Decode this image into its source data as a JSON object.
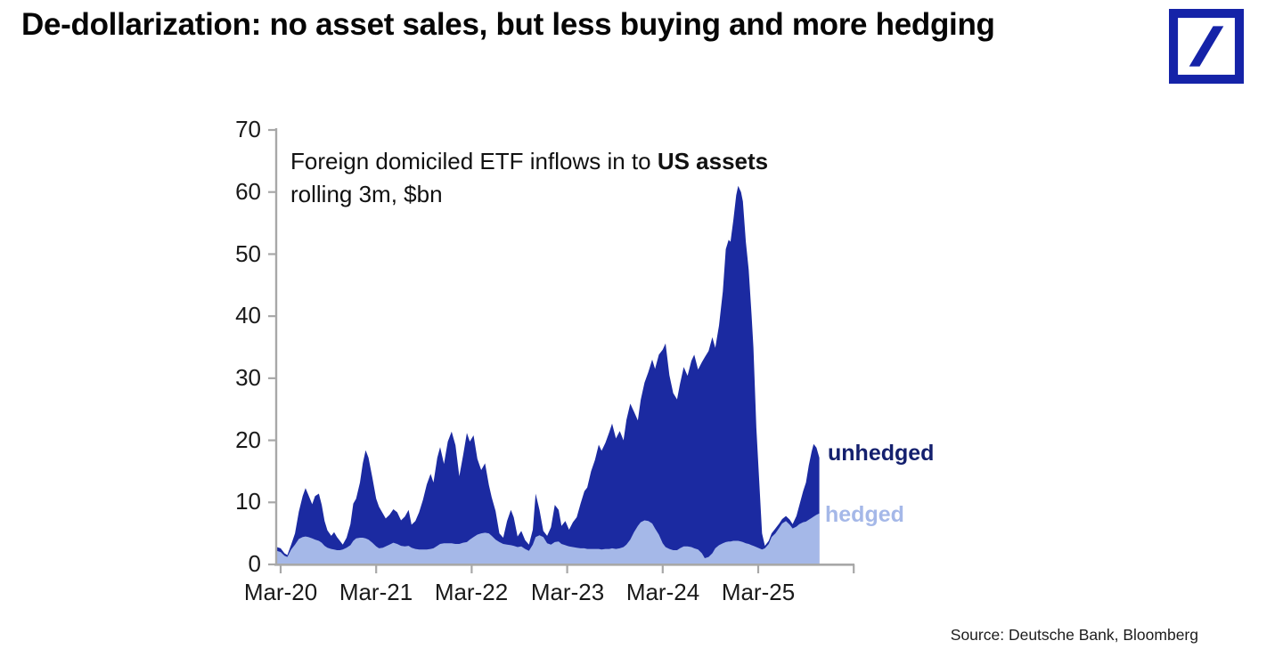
{
  "page": {
    "title": "De-dollarization: no asset sales, but less buying and more hedging",
    "source": "Source: Deutsche Bank, Bloomberg"
  },
  "logo": {
    "name": "deutsche-bank-logo",
    "color": "#1523a8"
  },
  "chart_data": {
    "type": "area",
    "subtitle_regular": "Foreign domiciled ETF inflows in to ",
    "subtitle_bold": "US assets",
    "subtitle_line2": "rolling 3m, $bn",
    "ylim": [
      0,
      70
    ],
    "grid": false,
    "legend_position": "right",
    "y_ticks": [
      70,
      60,
      50,
      40,
      30,
      20,
      10,
      0
    ],
    "x_ticks": [
      "Mar-20",
      "Mar-21",
      "Mar-22",
      "Mar-23",
      "Mar-24",
      "Mar-25"
    ],
    "axis_color": "#a8a8a8",
    "series_colors": {
      "unhedged": "#1b2aa1",
      "hedged": "#a5b8e8"
    },
    "legend": [
      {
        "label": "unhedged",
        "color": "#14206e"
      },
      {
        "label": "hedged",
        "color": "#a5b8e8"
      }
    ],
    "x_unit": "decimal_year",
    "series_note": "points are [decimal_year, unhedged_$bn, hedged_$bn]; both areas drawn from zero, hedged in front",
    "points": [
      [
        2020.13,
        2.8,
        2.2
      ],
      [
        2020.17,
        2.6,
        2.0
      ],
      [
        2020.21,
        1.8,
        1.4
      ],
      [
        2020.24,
        1.5,
        1.2
      ],
      [
        2020.28,
        3.2,
        2.4
      ],
      [
        2020.32,
        5.0,
        3.2
      ],
      [
        2020.36,
        8.5,
        4.1
      ],
      [
        2020.4,
        11.0,
        4.4
      ],
      [
        2020.43,
        12.3,
        4.5
      ],
      [
        2020.46,
        11.2,
        4.4
      ],
      [
        2020.5,
        9.7,
        4.2
      ],
      [
        2020.53,
        11.0,
        4.0
      ],
      [
        2020.57,
        11.4,
        3.8
      ],
      [
        2020.6,
        9.6,
        3.5
      ],
      [
        2020.63,
        7.0,
        3.0
      ],
      [
        2020.66,
        5.5,
        2.7
      ],
      [
        2020.7,
        4.6,
        2.5
      ],
      [
        2020.73,
        5.2,
        2.4
      ],
      [
        2020.76,
        4.4,
        2.3
      ],
      [
        2020.79,
        3.8,
        2.3
      ],
      [
        2020.82,
        3.2,
        2.4
      ],
      [
        2020.86,
        4.3,
        2.7
      ],
      [
        2020.9,
        6.5,
        3.1
      ],
      [
        2020.93,
        9.8,
        3.8
      ],
      [
        2020.96,
        10.6,
        4.2
      ],
      [
        2021.0,
        13.2,
        4.3
      ],
      [
        2021.03,
        16.3,
        4.3
      ],
      [
        2021.06,
        18.4,
        4.2
      ],
      [
        2021.09,
        17.2,
        4.0
      ],
      [
        2021.13,
        14.0,
        3.5
      ],
      [
        2021.17,
        10.6,
        2.9
      ],
      [
        2021.2,
        9.3,
        2.6
      ],
      [
        2021.24,
        8.2,
        2.7
      ],
      [
        2021.27,
        7.4,
        2.9
      ],
      [
        2021.31,
        8.0,
        3.2
      ],
      [
        2021.35,
        8.9,
        3.5
      ],
      [
        2021.39,
        8.4,
        3.3
      ],
      [
        2021.43,
        7.1,
        3.0
      ],
      [
        2021.47,
        7.7,
        2.9
      ],
      [
        2021.51,
        8.8,
        3.0
      ],
      [
        2021.54,
        6.4,
        2.7
      ],
      [
        2021.58,
        7.0,
        2.5
      ],
      [
        2021.62,
        8.4,
        2.4
      ],
      [
        2021.66,
        10.4,
        2.4
      ],
      [
        2021.7,
        12.9,
        2.4
      ],
      [
        2021.74,
        14.6,
        2.5
      ],
      [
        2021.77,
        13.2,
        2.6
      ],
      [
        2021.81,
        17.2,
        3.0
      ],
      [
        2021.84,
        18.9,
        3.3
      ],
      [
        2021.88,
        16.2,
        3.4
      ],
      [
        2021.92,
        19.8,
        3.4
      ],
      [
        2021.96,
        21.4,
        3.4
      ],
      [
        2022.0,
        19.2,
        3.3
      ],
      [
        2022.04,
        14.2,
        3.3
      ],
      [
        2022.08,
        17.6,
        3.5
      ],
      [
        2022.12,
        21.2,
        3.6
      ],
      [
        2022.15,
        19.8,
        4.0
      ],
      [
        2022.19,
        20.8,
        4.4
      ],
      [
        2022.23,
        17.0,
        4.8
      ],
      [
        2022.27,
        15.2,
        5.0
      ],
      [
        2022.31,
        16.3,
        5.1
      ],
      [
        2022.35,
        12.8,
        5.0
      ],
      [
        2022.38,
        10.8,
        4.6
      ],
      [
        2022.42,
        8.6,
        4.0
      ],
      [
        2022.46,
        5.0,
        3.6
      ],
      [
        2022.5,
        4.3,
        3.3
      ],
      [
        2022.54,
        7.0,
        3.2
      ],
      [
        2022.58,
        8.8,
        3.1
      ],
      [
        2022.61,
        7.6,
        3.0
      ],
      [
        2022.65,
        4.5,
        2.8
      ],
      [
        2022.69,
        5.4,
        2.9
      ],
      [
        2022.73,
        3.9,
        2.5
      ],
      [
        2022.77,
        3.2,
        2.2
      ],
      [
        2022.81,
        5.6,
        3.2
      ],
      [
        2022.84,
        11.4,
        4.4
      ],
      [
        2022.88,
        8.8,
        4.7
      ],
      [
        2022.92,
        5.4,
        4.4
      ],
      [
        2022.96,
        4.6,
        3.4
      ],
      [
        2023.0,
        6.0,
        3.2
      ],
      [
        2023.04,
        9.6,
        3.6
      ],
      [
        2023.08,
        8.8,
        3.7
      ],
      [
        2023.11,
        6.2,
        3.3
      ],
      [
        2023.15,
        7.0,
        3.1
      ],
      [
        2023.19,
        5.6,
        2.9
      ],
      [
        2023.23,
        6.8,
        2.8
      ],
      [
        2023.27,
        7.6,
        2.7
      ],
      [
        2023.31,
        9.8,
        2.6
      ],
      [
        2023.35,
        11.8,
        2.6
      ],
      [
        2023.38,
        12.4,
        2.5
      ],
      [
        2023.42,
        15.0,
        2.5
      ],
      [
        2023.46,
        16.8,
        2.5
      ],
      [
        2023.5,
        19.3,
        2.5
      ],
      [
        2023.53,
        18.3,
        2.4
      ],
      [
        2023.57,
        19.6,
        2.5
      ],
      [
        2023.61,
        21.3,
        2.5
      ],
      [
        2023.64,
        22.7,
        2.6
      ],
      [
        2023.68,
        20.3,
        2.5
      ],
      [
        2023.72,
        21.5,
        2.6
      ],
      [
        2023.76,
        20.0,
        2.8
      ],
      [
        2023.79,
        23.3,
        3.2
      ],
      [
        2023.83,
        25.9,
        4.0
      ],
      [
        2023.87,
        24.6,
        5.2
      ],
      [
        2023.91,
        23.2,
        6.2
      ],
      [
        2023.94,
        26.5,
        6.8
      ],
      [
        2023.98,
        29.3,
        7.1
      ],
      [
        2024.02,
        31.0,
        7.0
      ],
      [
        2024.06,
        33.0,
        6.6
      ],
      [
        2024.09,
        31.5,
        5.8
      ],
      [
        2024.13,
        33.8,
        4.8
      ],
      [
        2024.17,
        34.6,
        3.4
      ],
      [
        2024.2,
        35.6,
        2.8
      ],
      [
        2024.24,
        30.5,
        2.5
      ],
      [
        2024.28,
        27.6,
        2.3
      ],
      [
        2024.32,
        26.6,
        2.3
      ],
      [
        2024.35,
        29.0,
        2.6
      ],
      [
        2024.39,
        31.8,
        2.9
      ],
      [
        2024.43,
        30.4,
        2.9
      ],
      [
        2024.47,
        32.8,
        2.8
      ],
      [
        2024.5,
        33.8,
        2.6
      ],
      [
        2024.54,
        31.4,
        2.4
      ],
      [
        2024.58,
        32.6,
        1.8
      ],
      [
        2024.61,
        33.4,
        1.0
      ],
      [
        2024.65,
        34.4,
        1.2
      ],
      [
        2024.69,
        36.6,
        1.8
      ],
      [
        2024.72,
        34.9,
        2.6
      ],
      [
        2024.76,
        38.5,
        3.1
      ],
      [
        2024.8,
        44.0,
        3.4
      ],
      [
        2024.83,
        50.8,
        3.6
      ],
      [
        2024.86,
        52.3,
        3.7
      ],
      [
        2024.88,
        52.0,
        3.7
      ],
      [
        2024.91,
        55.5,
        3.8
      ],
      [
        2024.94,
        59.5,
        3.8
      ],
      [
        2024.96,
        61.0,
        3.8
      ],
      [
        2024.99,
        60.0,
        3.7
      ],
      [
        2025.01,
        58.5,
        3.6
      ],
      [
        2025.04,
        52.0,
        3.4
      ],
      [
        2025.07,
        47.5,
        3.3
      ],
      [
        2025.1,
        40.3,
        3.1
      ],
      [
        2025.12,
        35.0,
        3.0
      ],
      [
        2025.15,
        22.0,
        2.8
      ],
      [
        2025.18,
        13.5,
        2.6
      ],
      [
        2025.21,
        5.0,
        2.4
      ],
      [
        2025.24,
        3.0,
        2.6
      ],
      [
        2025.28,
        3.8,
        3.3
      ],
      [
        2025.31,
        5.0,
        4.4
      ],
      [
        2025.35,
        5.8,
        5.0
      ],
      [
        2025.39,
        6.6,
        5.9
      ],
      [
        2025.42,
        7.3,
        6.6
      ],
      [
        2025.46,
        7.8,
        7.0
      ],
      [
        2025.5,
        7.2,
        6.4
      ],
      [
        2025.53,
        6.5,
        5.8
      ],
      [
        2025.57,
        7.8,
        6.1
      ],
      [
        2025.6,
        9.5,
        6.5
      ],
      [
        2025.64,
        11.8,
        6.8
      ],
      [
        2025.67,
        13.2,
        6.9
      ],
      [
        2025.7,
        16.0,
        7.2
      ],
      [
        2025.73,
        18.2,
        7.5
      ],
      [
        2025.75,
        19.4,
        7.7
      ],
      [
        2025.78,
        18.8,
        8.0
      ],
      [
        2025.81,
        17.2,
        8.2
      ]
    ]
  }
}
